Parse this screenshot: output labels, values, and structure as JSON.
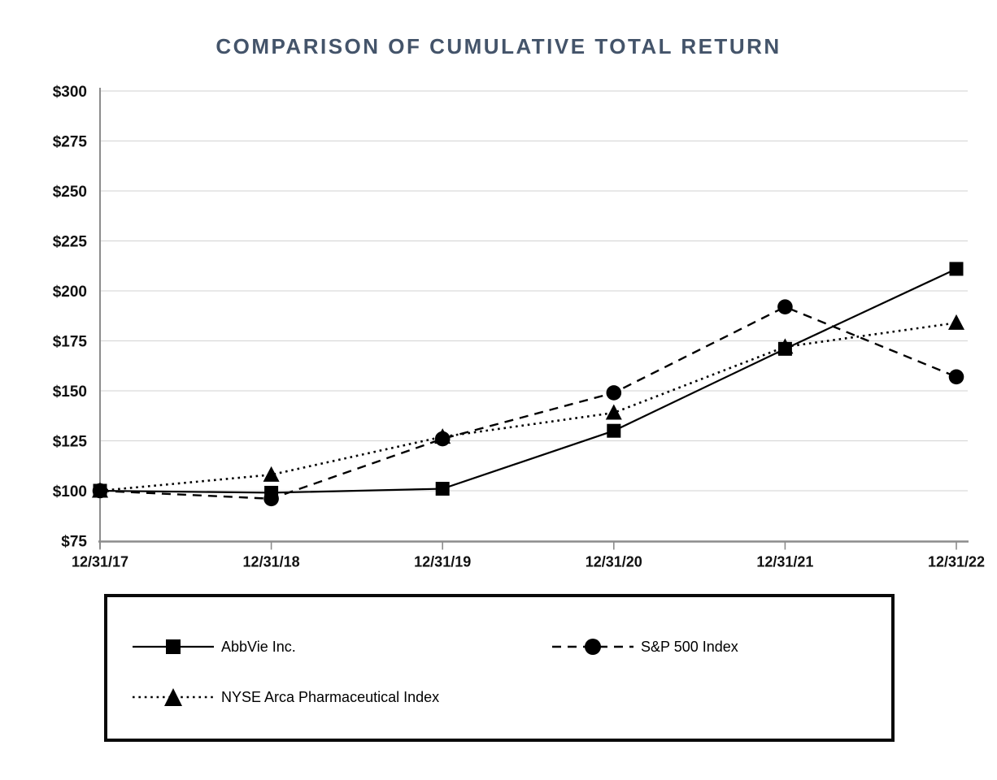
{
  "title": "COMPARISON OF CUMULATIVE TOTAL RETURN",
  "colors": {
    "title_text": "#44546A",
    "gridline": "#d9d9d9",
    "axis": "#8c8c8c",
    "series_stroke": "#000000",
    "legend_border": "#0a0a0a"
  },
  "chart_data": {
    "type": "line",
    "title": "COMPARISON OF CUMULATIVE TOTAL RETURN",
    "xlabel": "",
    "ylabel": "",
    "categories": [
      "12/31/17",
      "12/31/18",
      "12/31/19",
      "12/31/20",
      "12/31/21",
      "12/31/22"
    ],
    "y_tick_labels": [
      "$75",
      "$100",
      "$125",
      "$150",
      "$175",
      "$200",
      "$225",
      "$250",
      "$275",
      "$300"
    ],
    "y_tick_values": [
      75,
      100,
      125,
      150,
      175,
      200,
      225,
      250,
      275,
      300
    ],
    "ylim": [
      75,
      300
    ],
    "grid": "horizontal",
    "legend_position": "boxed-below",
    "series": [
      {
        "name": "AbbVie Inc.",
        "marker": "square",
        "line_style": "solid",
        "color": "#000000",
        "values": [
          100,
          99,
          101,
          130,
          171,
          211
        ]
      },
      {
        "name": "S&P 500 Index",
        "marker": "circle",
        "line_style": "dashed",
        "color": "#000000",
        "values": [
          100,
          96,
          126,
          149,
          192,
          157
        ]
      },
      {
        "name": "NYSE Arca Pharmaceutical Index",
        "marker": "triangle",
        "line_style": "dotted",
        "color": "#000000",
        "values": [
          100,
          108,
          127,
          139,
          172,
          184
        ]
      }
    ]
  }
}
